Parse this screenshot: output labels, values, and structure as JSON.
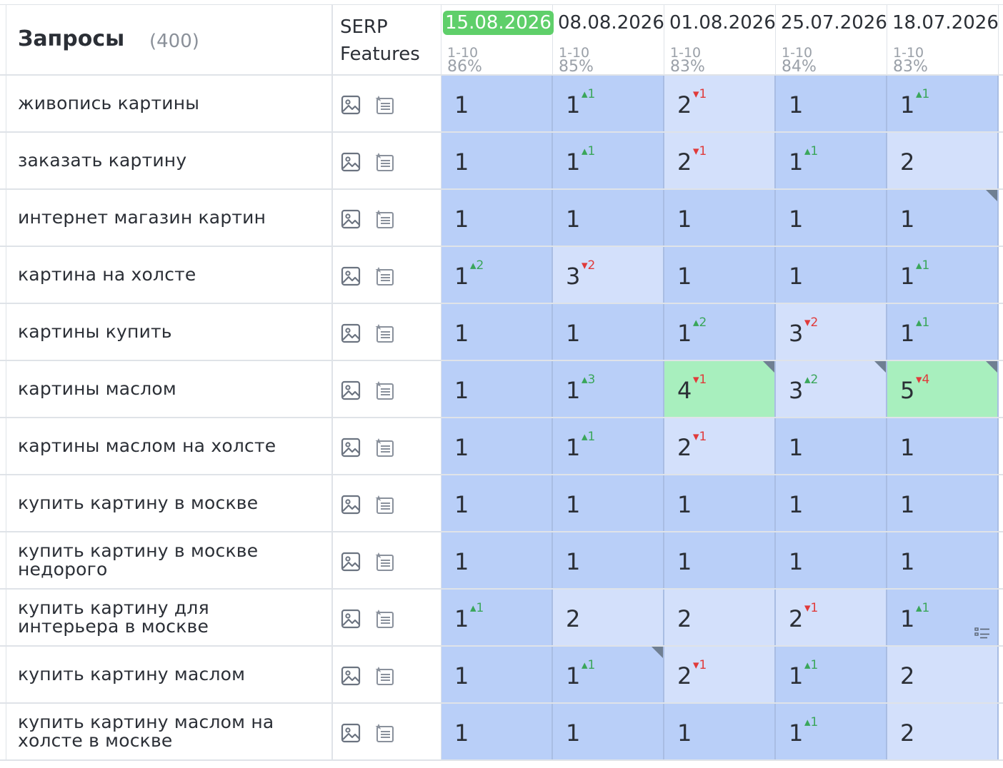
{
  "header": {
    "title": "Запросы",
    "count": "(400)",
    "serp_line1": "SERP",
    "serp_line2": "Features"
  },
  "dates": [
    {
      "label": "15.08.2026",
      "range": "1-10",
      "pct": "86%",
      "current": true
    },
    {
      "label": "08.08.2026",
      "range": "1-10",
      "pct": "85%",
      "current": false
    },
    {
      "label": "01.08.2026",
      "range": "1-10",
      "pct": "83%",
      "current": false
    },
    {
      "label": "25.07.2026",
      "range": "1-10",
      "pct": "84%",
      "current": false
    },
    {
      "label": "18.07.2026",
      "range": "1-10",
      "pct": "83%",
      "current": false
    }
  ],
  "colors": {
    "top_position": "#b9cff8",
    "lower_position": "#d3e0fb",
    "highlight": "#a8efbe",
    "current_date_badge": "#5fcf6a",
    "delta_up": "#3aa65a",
    "delta_down": "#e03a3a"
  },
  "icons": [
    "image-icon",
    "featured-snippet-icon",
    "note-icon"
  ],
  "rows": [
    {
      "query": "живопись картины",
      "cells": [
        {
          "pos": "1",
          "delta": "",
          "dir": "",
          "bg": 0
        },
        {
          "pos": "1",
          "delta": "1",
          "dir": "up",
          "bg": 0
        },
        {
          "pos": "2",
          "delta": "1",
          "dir": "down",
          "bg": 1
        },
        {
          "pos": "1",
          "delta": "",
          "dir": "",
          "bg": 0
        },
        {
          "pos": "1",
          "delta": "1",
          "dir": "up",
          "bg": 0
        }
      ]
    },
    {
      "query": "заказать картину",
      "cells": [
        {
          "pos": "1",
          "delta": "",
          "dir": "",
          "bg": 0
        },
        {
          "pos": "1",
          "delta": "1",
          "dir": "up",
          "bg": 0
        },
        {
          "pos": "2",
          "delta": "1",
          "dir": "down",
          "bg": 1
        },
        {
          "pos": "1",
          "delta": "1",
          "dir": "up",
          "bg": 0
        },
        {
          "pos": "2",
          "delta": "",
          "dir": "",
          "bg": 1
        }
      ]
    },
    {
      "query": "интернет магазин картин",
      "cells": [
        {
          "pos": "1",
          "delta": "",
          "dir": "",
          "bg": 0
        },
        {
          "pos": "1",
          "delta": "",
          "dir": "",
          "bg": 0
        },
        {
          "pos": "1",
          "delta": "",
          "dir": "",
          "bg": 0
        },
        {
          "pos": "1",
          "delta": "",
          "dir": "",
          "bg": 0
        },
        {
          "pos": "1",
          "delta": "",
          "dir": "",
          "bg": 0,
          "corner": true
        }
      ]
    },
    {
      "query": "картина на холсте",
      "cells": [
        {
          "pos": "1",
          "delta": "2",
          "dir": "up",
          "bg": 0
        },
        {
          "pos": "3",
          "delta": "2",
          "dir": "down",
          "bg": 1
        },
        {
          "pos": "1",
          "delta": "",
          "dir": "",
          "bg": 0
        },
        {
          "pos": "1",
          "delta": "",
          "dir": "",
          "bg": 0
        },
        {
          "pos": "1",
          "delta": "1",
          "dir": "up",
          "bg": 0
        }
      ]
    },
    {
      "query": "картины купить",
      "cells": [
        {
          "pos": "1",
          "delta": "",
          "dir": "",
          "bg": 0
        },
        {
          "pos": "1",
          "delta": "",
          "dir": "",
          "bg": 0
        },
        {
          "pos": "1",
          "delta": "2",
          "dir": "up",
          "bg": 0
        },
        {
          "pos": "3",
          "delta": "2",
          "dir": "down",
          "bg": 1
        },
        {
          "pos": "1",
          "delta": "1",
          "dir": "up",
          "bg": 0
        }
      ]
    },
    {
      "query": "картины маслом",
      "cells": [
        {
          "pos": "1",
          "delta": "",
          "dir": "",
          "bg": 0
        },
        {
          "pos": "1",
          "delta": "3",
          "dir": "up",
          "bg": 0
        },
        {
          "pos": "4",
          "delta": "1",
          "dir": "down",
          "bg": 2,
          "corner": true
        },
        {
          "pos": "3",
          "delta": "2",
          "dir": "up",
          "bg": 1,
          "corner": true
        },
        {
          "pos": "5",
          "delta": "4",
          "dir": "down",
          "bg": 2,
          "corner": true
        }
      ]
    },
    {
      "query": "картины маслом на холсте",
      "cells": [
        {
          "pos": "1",
          "delta": "",
          "dir": "",
          "bg": 0
        },
        {
          "pos": "1",
          "delta": "1",
          "dir": "up",
          "bg": 0
        },
        {
          "pos": "2",
          "delta": "1",
          "dir": "down",
          "bg": 1
        },
        {
          "pos": "1",
          "delta": "",
          "dir": "",
          "bg": 0
        },
        {
          "pos": "1",
          "delta": "",
          "dir": "",
          "bg": 0
        }
      ]
    },
    {
      "query": "купить картину в москве",
      "cells": [
        {
          "pos": "1",
          "delta": "",
          "dir": "",
          "bg": 0
        },
        {
          "pos": "1",
          "delta": "",
          "dir": "",
          "bg": 0
        },
        {
          "pos": "1",
          "delta": "",
          "dir": "",
          "bg": 0
        },
        {
          "pos": "1",
          "delta": "",
          "dir": "",
          "bg": 0
        },
        {
          "pos": "1",
          "delta": "",
          "dir": "",
          "bg": 0
        }
      ]
    },
    {
      "query": "купить картину в москве недорого",
      "cells": [
        {
          "pos": "1",
          "delta": "",
          "dir": "",
          "bg": 0
        },
        {
          "pos": "1",
          "delta": "",
          "dir": "",
          "bg": 0
        },
        {
          "pos": "1",
          "delta": "",
          "dir": "",
          "bg": 0
        },
        {
          "pos": "1",
          "delta": "",
          "dir": "",
          "bg": 0
        },
        {
          "pos": "1",
          "delta": "",
          "dir": "",
          "bg": 0
        }
      ]
    },
    {
      "query": "купить картину для интерьера в москве",
      "cells": [
        {
          "pos": "1",
          "delta": "1",
          "dir": "up",
          "bg": 0
        },
        {
          "pos": "2",
          "delta": "",
          "dir": "",
          "bg": 1
        },
        {
          "pos": "2",
          "delta": "",
          "dir": "",
          "bg": 1
        },
        {
          "pos": "2",
          "delta": "1",
          "dir": "down",
          "bg": 1
        },
        {
          "pos": "1",
          "delta": "1",
          "dir": "up",
          "bg": 0,
          "note": true
        }
      ]
    },
    {
      "query": "купить картину маслом",
      "cells": [
        {
          "pos": "1",
          "delta": "",
          "dir": "",
          "bg": 0
        },
        {
          "pos": "1",
          "delta": "1",
          "dir": "up",
          "bg": 0,
          "corner": true
        },
        {
          "pos": "2",
          "delta": "1",
          "dir": "down",
          "bg": 1
        },
        {
          "pos": "1",
          "delta": "1",
          "dir": "up",
          "bg": 0
        },
        {
          "pos": "2",
          "delta": "",
          "dir": "",
          "bg": 1
        }
      ]
    },
    {
      "query": "купить картину маслом на холсте в москве",
      "cells": [
        {
          "pos": "1",
          "delta": "",
          "dir": "",
          "bg": 0
        },
        {
          "pos": "1",
          "delta": "",
          "dir": "",
          "bg": 0
        },
        {
          "pos": "1",
          "delta": "",
          "dir": "",
          "bg": 0
        },
        {
          "pos": "1",
          "delta": "1",
          "dir": "up",
          "bg": 0
        },
        {
          "pos": "2",
          "delta": "",
          "dir": "",
          "bg": 1
        }
      ]
    }
  ]
}
